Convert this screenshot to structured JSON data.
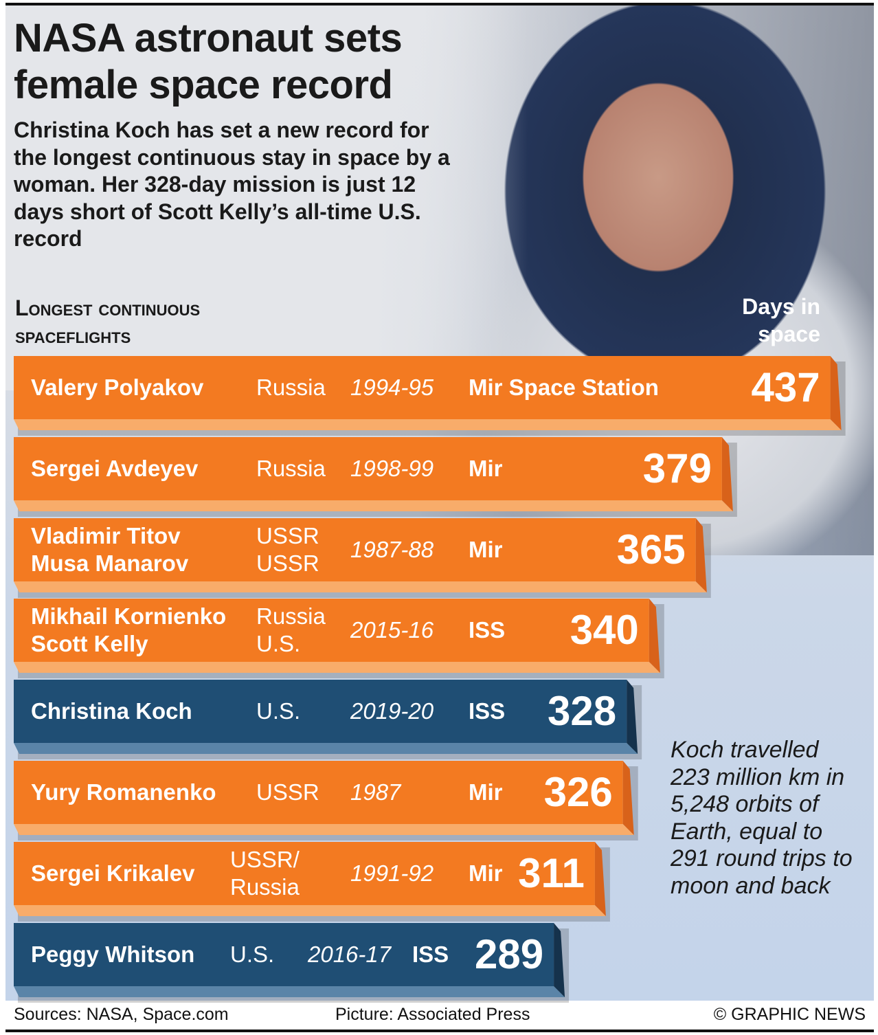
{
  "headline": [
    "NASA astronaut sets",
    "female space record"
  ],
  "intro": "Christina Koch has set a new record for the longest continuous stay in space by a woman. Her 328-day mission is just 12 days short of Scott Kelly’s all-time U.S. record",
  "footer": {
    "sources": "Sources: NASA, Space.com",
    "picture": "Picture: Associated Press",
    "credit": "© GRAPHIC NEWS"
  },
  "note": "Koch travelled 223 million km in 5,248 orbits of Earth, equal to 291 round trips to moon and back",
  "colors": {
    "orange": "#f37a21",
    "blue": "#1f4e74"
  },
  "chart_data": {
    "type": "bar",
    "orientation": "horizontal",
    "title": [
      "Longest continuous",
      "spaceflights"
    ],
    "value_label": [
      "Days in",
      "space"
    ],
    "rows": [
      {
        "names": [
          "Valery Polyakov"
        ],
        "countries": [
          "Russia"
        ],
        "years": "1994-95",
        "station": "Mir Space Station",
        "value": 437,
        "color": "orange"
      },
      {
        "names": [
          "Sergei Avdeyev"
        ],
        "countries": [
          "Russia"
        ],
        "years": "1998-99",
        "station": "Mir",
        "value": 379,
        "color": "orange"
      },
      {
        "names": [
          "Vladimir Titov",
          "Musa Manarov"
        ],
        "countries": [
          "USSR",
          "USSR"
        ],
        "years": "1987-88",
        "station": "Mir",
        "value": 365,
        "color": "orange"
      },
      {
        "names": [
          "Mikhail Kornienko",
          "Scott Kelly"
        ],
        "countries": [
          "Russia",
          "U.S."
        ],
        "years": "2015-16",
        "station": "ISS",
        "value": 340,
        "color": "orange"
      },
      {
        "names": [
          "Christina Koch"
        ],
        "countries": [
          "U.S."
        ],
        "years": "2019-20",
        "station": "ISS",
        "value": 328,
        "color": "blue"
      },
      {
        "names": [
          "Yury Romanenko"
        ],
        "countries": [
          "USSR"
        ],
        "years": "1987",
        "station": "Mir",
        "value": 326,
        "color": "orange"
      },
      {
        "names": [
          "Sergei Krikalev"
        ],
        "countries": [
          "USSR/",
          "Russia"
        ],
        "years": "1991-92",
        "station": "Mir",
        "value": 311,
        "color": "orange"
      },
      {
        "names": [
          "Peggy Whitson"
        ],
        "countries": [
          "U.S."
        ],
        "years": "2016-17",
        "station": "ISS",
        "value": 289,
        "color": "blue"
      }
    ]
  }
}
